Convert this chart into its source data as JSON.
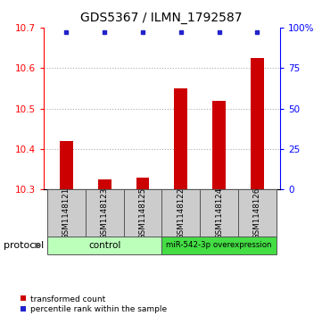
{
  "title": "GDS5367 / ILMN_1792587",
  "samples": [
    "GSM1148121",
    "GSM1148123",
    "GSM1148125",
    "GSM1148122",
    "GSM1148124",
    "GSM1148126"
  ],
  "red_values": [
    10.42,
    10.325,
    10.33,
    10.55,
    10.52,
    10.625
  ],
  "blue_values": [
    97,
    97,
    97,
    97,
    97,
    97
  ],
  "ylim_left": [
    10.3,
    10.7
  ],
  "ylim_right": [
    0,
    100
  ],
  "yticks_left": [
    10.3,
    10.4,
    10.5,
    10.6,
    10.7
  ],
  "yticks_right": [
    0,
    25,
    50,
    75,
    100
  ],
  "ytick_right_labels": [
    "0",
    "25",
    "50",
    "75",
    "100%"
  ],
  "bar_bottom": 10.3,
  "bar_color": "#cc0000",
  "dot_color": "#2222cc",
  "grid_color": "#aaaaaa",
  "control_label": "control",
  "overexp_label": "miR-542-3p overexpression",
  "control_color": "#bbffbb",
  "overexp_color": "#44dd44",
  "protocol_label": "protocol",
  "legend_red_label": "transformed count",
  "legend_blue_label": "percentile rank within the sample",
  "title_fontsize": 10,
  "tick_fontsize": 7.5,
  "sample_fontsize": 6.2,
  "label_fontsize": 7.5,
  "protocol_fontsize": 8
}
